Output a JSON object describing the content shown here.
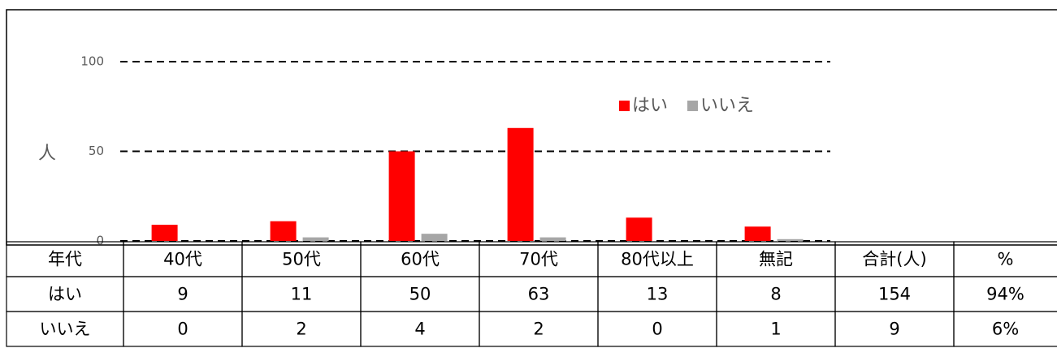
{
  "chart_data": {
    "type": "bar",
    "ylabel": "人",
    "categories": [
      "40代",
      "50代",
      "60代",
      "70代",
      "80代以上",
      "無記"
    ],
    "series": [
      {
        "name": "はい",
        "color": "#ff0000",
        "values": [
          9,
          11,
          50,
          63,
          13,
          8
        ]
      },
      {
        "name": "いいえ",
        "color": "#a6a6a6",
        "values": [
          0,
          2,
          4,
          2,
          0,
          1
        ]
      }
    ],
    "ylim": [
      0,
      100
    ],
    "yticks": [
      0,
      50,
      100
    ],
    "grid": "dashed",
    "legend": "top-right"
  },
  "table": {
    "header": [
      "年代",
      "40代",
      "50代",
      "60代",
      "70代",
      "80代以上",
      "無記",
      "合計(人)",
      "%"
    ],
    "rows": [
      [
        "はい",
        "9",
        "11",
        "50",
        "63",
        "13",
        "8",
        "154",
        "94%"
      ],
      [
        "いいえ",
        "0",
        "2",
        "4",
        "2",
        "0",
        "1",
        "9",
        "6%"
      ]
    ]
  }
}
